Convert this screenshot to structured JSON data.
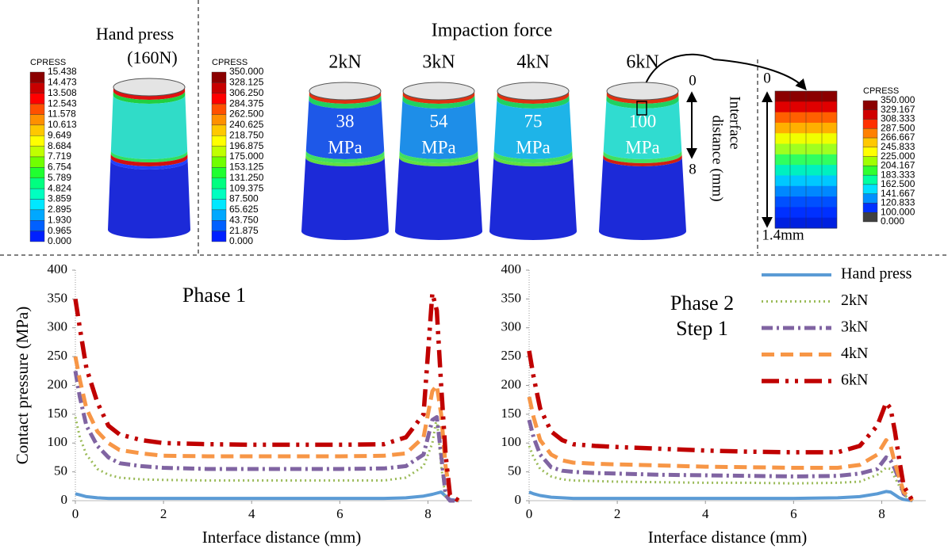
{
  "top": {
    "hand_press": {
      "title": [
        "Hand press",
        "(160N)"
      ],
      "legend": {
        "title": "CPRESS",
        "labels": [
          "15.438",
          "14.473",
          "13.508",
          "12.543",
          "11.578",
          "10.613",
          "9.649",
          "8.684",
          "7.719",
          "6.754",
          "5.789",
          "4.824",
          "3.859",
          "2.895",
          "1.930",
          "0.965",
          "0.000"
        ]
      }
    },
    "impaction": {
      "title": "Impaction force",
      "legend": {
        "title": "CPRESS",
        "labels": [
          "350.000",
          "328.125",
          "306.250",
          "284.375",
          "262.500",
          "240.625",
          "218.750",
          "196.875",
          "175.000",
          "153.125",
          "131.250",
          "109.375",
          "87.500",
          "65.625",
          "43.750",
          "21.875",
          "0.000"
        ]
      },
      "cylinders": [
        {
          "force": "2kN",
          "pressure": "38",
          "unit": "MPa"
        },
        {
          "force": "3kN",
          "pressure": "54",
          "unit": "MPa"
        },
        {
          "force": "4kN",
          "pressure": "75",
          "unit": "MPa"
        },
        {
          "force": "6kN",
          "pressure": "100",
          "unit": "MPa"
        }
      ],
      "axis": {
        "start": "0",
        "end": "8",
        "label": [
          "Interface",
          "distance (mm)"
        ]
      }
    },
    "zoom": {
      "start": "0",
      "end": "1.4mm",
      "legend": {
        "title": "CPRESS",
        "labels": [
          "350.000",
          "329.167",
          "308.333",
          "287.500",
          "266.667",
          "245.833",
          "225.000",
          "204.167",
          "183.333",
          "162.500",
          "141.667",
          "120.833",
          "100.000",
          "0.000"
        ]
      }
    }
  },
  "chart_data": [
    {
      "type": "line",
      "title": [
        "Phase 1"
      ],
      "xlabel": "Interface distance (mm)",
      "ylabel": "Contact pressure (MPa)",
      "x": [
        0,
        0.1,
        0.25,
        0.5,
        0.75,
        1,
        1.5,
        2,
        3,
        4,
        5,
        6,
        7,
        7.5,
        7.9,
        8.1,
        8.2,
        8.3,
        8.4,
        8.5,
        8.7
      ],
      "xlim": [
        0,
        9
      ],
      "xticks": [
        0,
        2,
        4,
        6,
        8
      ],
      "ylim": [
        0,
        400
      ],
      "yticks": [
        0,
        50,
        100,
        150,
        200,
        250,
        300,
        350,
        400
      ],
      "grid": false,
      "legend": false,
      "series": [
        {
          "color": "#5b9bd5",
          "linestyle": "solid",
          "values": [
            12,
            10,
            7,
            5,
            4,
            4,
            4,
            4,
            4,
            4,
            4,
            4,
            4,
            5,
            8,
            11,
            13,
            15,
            8,
            2,
            0
          ]
        },
        {
          "color": "#9bbb59",
          "linestyle": "dotted",
          "values": [
            145,
            110,
            80,
            55,
            45,
            40,
            37,
            36,
            35,
            35,
            35,
            35,
            35,
            40,
            60,
            100,
            145,
            60,
            5,
            0,
            0
          ]
        },
        {
          "color": "#8064a2",
          "linestyle": "dashdot",
          "values": [
            225,
            180,
            130,
            95,
            75,
            65,
            60,
            57,
            55,
            55,
            55,
            55,
            56,
            60,
            80,
            140,
            145,
            80,
            10,
            0,
            0
          ]
        },
        {
          "color": "#f79646",
          "linestyle": "dashed",
          "values": [
            250,
            210,
            160,
            120,
            100,
            88,
            82,
            78,
            77,
            77,
            77,
            77,
            78,
            82,
            110,
            190,
            200,
            150,
            60,
            10,
            0
          ]
        },
        {
          "color": "#c00000",
          "linestyle": "dashdotdot",
          "values": [
            350,
            300,
            230,
            170,
            130,
            115,
            105,
            100,
            98,
            97,
            97,
            97,
            98,
            110,
            150,
            360,
            330,
            200,
            80,
            10,
            0
          ]
        }
      ]
    },
    {
      "type": "line",
      "title": [
        "Phase 2",
        "Step 1"
      ],
      "xlabel": "Interface distance (mm)",
      "x": [
        0,
        0.1,
        0.25,
        0.5,
        0.75,
        1,
        1.5,
        2,
        3,
        4,
        5,
        6,
        7,
        7.5,
        7.9,
        8.1,
        8.2,
        8.3,
        8.4,
        8.5,
        8.7
      ],
      "xlim": [
        0,
        9
      ],
      "xticks": [
        0,
        2,
        4,
        6,
        8
      ],
      "ylim": [
        0,
        400
      ],
      "yticks": [
        0,
        50,
        100,
        150,
        200,
        250,
        300,
        350,
        400
      ],
      "grid": false,
      "legend": "upper right",
      "series": [
        {
          "name": "Hand press",
          "color": "#5b9bd5",
          "linestyle": "solid",
          "values": [
            15,
            12,
            9,
            6,
            5,
            4,
            4,
            4,
            4,
            4,
            4,
            4,
            5,
            7,
            12,
            16,
            15,
            10,
            5,
            2,
            0
          ]
        },
        {
          "name": "2kN",
          "color": "#9bbb59",
          "linestyle": "dotted",
          "values": [
            95,
            75,
            55,
            42,
            37,
            35,
            34,
            33,
            32,
            31,
            31,
            30,
            31,
            33,
            45,
            57,
            55,
            40,
            25,
            10,
            0
          ]
        },
        {
          "name": "3kN",
          "color": "#8064a2",
          "linestyle": "dashdot",
          "values": [
            140,
            110,
            80,
            58,
            52,
            50,
            48,
            47,
            45,
            44,
            43,
            42,
            43,
            47,
            55,
            75,
            70,
            55,
            35,
            12,
            0
          ]
        },
        {
          "name": "4kN",
          "color": "#f79646",
          "linestyle": "dashed",
          "values": [
            180,
            145,
            105,
            80,
            70,
            66,
            64,
            63,
            61,
            59,
            58,
            57,
            57,
            62,
            80,
            105,
            95,
            65,
            40,
            15,
            0
          ]
        },
        {
          "name": "6kN",
          "color": "#c00000",
          "linestyle": "dashdotdot",
          "values": [
            260,
            215,
            160,
            120,
            105,
            98,
            95,
            93,
            90,
            87,
            85,
            84,
            84,
            95,
            130,
            170,
            160,
            120,
            70,
            25,
            0
          ]
        }
      ]
    }
  ]
}
